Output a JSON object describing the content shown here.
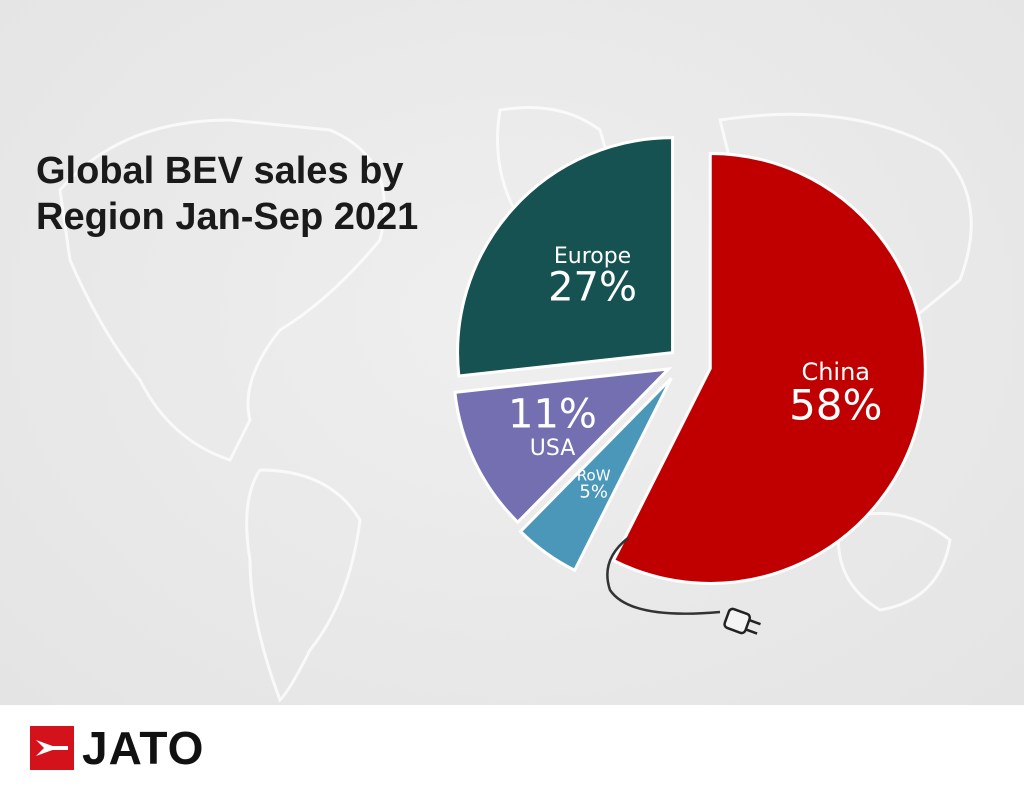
{
  "chart_data": {
    "type": "pie",
    "title": "Global BEV sales by Region Jan-Sep 2021",
    "categories": [
      "China",
      "RoW",
      "USA",
      "Europe"
    ],
    "values": [
      58,
      5,
      11,
      27
    ],
    "value_labels": [
      "58%",
      "5%",
      "11%",
      "27%"
    ],
    "colors": [
      "#c00000",
      "#4a97b9",
      "#746fb0",
      "#155251"
    ]
  },
  "logo": "JATO"
}
